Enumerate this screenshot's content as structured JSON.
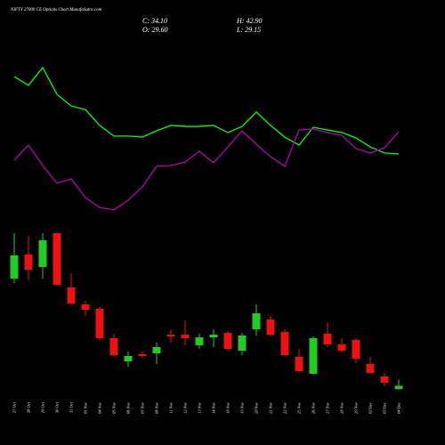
{
  "chart_data": {
    "type": "candlestick",
    "title": "NIFTY 27000 CE Options Chart MunafaSutra.com",
    "ohlc_labels": [
      "C: 34.10",
      "H: 42.90",
      "O: 29.60",
      "L: 29.15"
    ],
    "categories": [
      "27 Oct",
      "28 Oct",
      "29 Oct",
      "30 Oct",
      "31 Oct",
      "01 Nov",
      "04 Nov",
      "05 Nov",
      "06 Nov",
      "07 Nov",
      "08 Nov",
      "11 Nov",
      "12 Nov",
      "13 Nov",
      "14 Nov",
      "18 Nov",
      "19 Nov",
      "20 Nov",
      "21 Nov",
      "22 Nov",
      "25 Nov",
      "26 Nov",
      "27 Nov",
      "28 Nov",
      "29 Nov",
      "02 Dec",
      "03 Dec",
      "04 Dec"
    ],
    "open": [
      182.5,
      215.7,
      198.5,
      245.2,
      170.2,
      146.8,
      140.6,
      100,
      68,
      77.8,
      79.1,
      104.9,
      104.9,
      90.2,
      101.2,
      107.4,
      82.8,
      112.3,
      125.8,
      108.6,
      74.2,
      50.8,
      106.2,
      91.4,
      97.5,
      64.3,
      47.1,
      29.6
    ],
    "high": [
      245.2,
      241.5,
      245.2,
      246,
      189.8,
      151.7,
      143.1,
      106.2,
      81.5,
      81.5,
      93.8,
      112.3,
      124.6,
      106.2,
      112.3,
      109.8,
      107.4,
      146.8,
      132,
      112.3,
      85.2,
      102.5,
      122.2,
      100,
      100,
      74.2,
      52,
      42.9
    ],
    "low": [
      176.3,
      180,
      182.5,
      173,
      147,
      130.8,
      97.5,
      75.4,
      60.6,
      72.9,
      64.3,
      93.8,
      90.2,
      85.2,
      87.7,
      82.8,
      76.6,
      103.7,
      102.5,
      75.4,
      53.2,
      50,
      87.7,
      80.3,
      65.5,
      50.8,
      33.5,
      29.15
    ],
    "close": [
      214.5,
      194.8,
      235.4,
      173.8,
      148,
      139.4,
      100,
      76.6,
      75.4,
      75.4,
      87.7,
      102.5,
      100,
      101.2,
      104.9,
      85.2,
      103.7,
      134.5,
      104.9,
      76.6,
      54.5,
      100,
      91.4,
      82.8,
      71.7,
      52,
      38.5,
      34.1
    ],
    "up_color": "#22cc22",
    "down_color": "#ee1111",
    "ylim": [
      20,
      260
    ],
    "lines": {
      "ylim": [
        0,
        100
      ],
      "series": [
        {
          "color": "#00ff00",
          "values": [
            86.3,
            81.1,
            91.6,
            75.8,
            68.9,
            66.8,
            57.4,
            51.1,
            51.1,
            50.5,
            54.2,
            57.4,
            56.8,
            56.8,
            57.4,
            53.2,
            56.8,
            65.3,
            57.4,
            50.5,
            45.8,
            56.3,
            54.7,
            53.2,
            50,
            44.7,
            41.1,
            40.5
          ]
        },
        {
          "color": "#b000b0",
          "values": [
            36.8,
            45.8,
            33.7,
            23.2,
            25.8,
            14.7,
            8.9,
            7.4,
            13.2,
            21.1,
            33.2,
            33.7,
            35.8,
            42.1,
            35.3,
            44.7,
            54.2,
            46.3,
            38.9,
            33.2,
            54.7,
            55.3,
            53.2,
            51.6,
            43.7,
            41.1,
            44.2,
            53.7
          ]
        }
      ]
    }
  }
}
